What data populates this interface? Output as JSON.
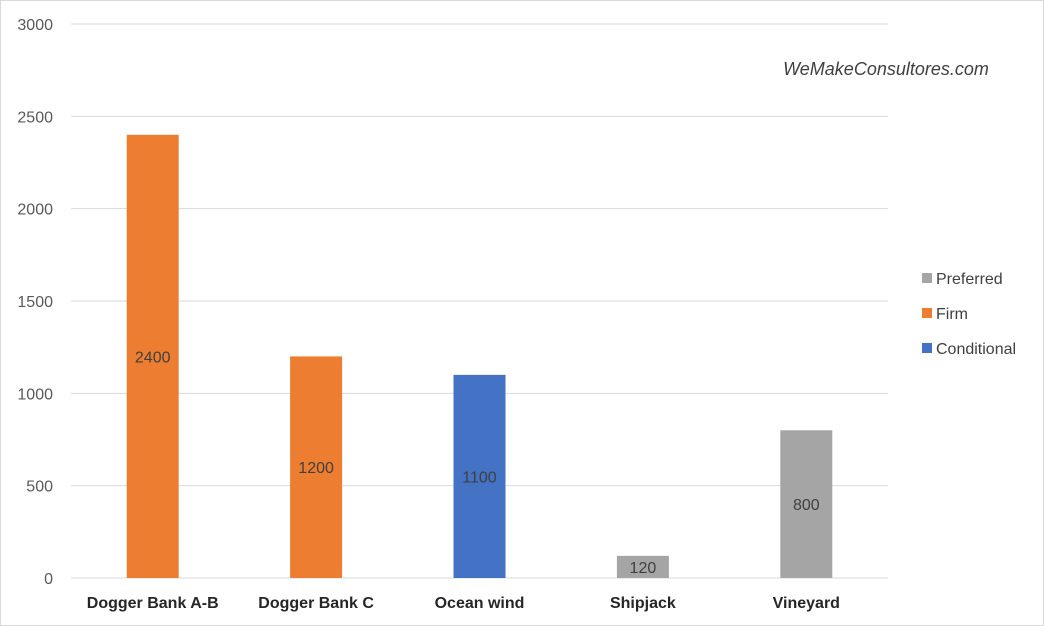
{
  "watermark": "WeMakeConsultores.com",
  "colors": {
    "Preferred": "#a5a5a5",
    "Firm": "#ed7d31",
    "Conditional": "#4472c4",
    "grid": "#d9d9d9",
    "axis": "#d9d9d9"
  },
  "chart_data": {
    "type": "bar",
    "title": "",
    "xlabel": "",
    "ylabel": "",
    "ylim": [
      0,
      3000
    ],
    "yticks": [
      0,
      500,
      1000,
      1500,
      2000,
      2500,
      3000
    ],
    "grid": true,
    "legend_position": "right",
    "legend": [
      "Preferred",
      "Firm",
      "Conditional"
    ],
    "categories": [
      "Dogger Bank A-B",
      "Dogger Bank C",
      "Ocean wind",
      "Shipjack",
      "Vineyard"
    ],
    "values": [
      2400,
      1200,
      1100,
      120,
      800
    ],
    "status": [
      "Firm",
      "Firm",
      "Conditional",
      "Preferred",
      "Preferred"
    ]
  }
}
